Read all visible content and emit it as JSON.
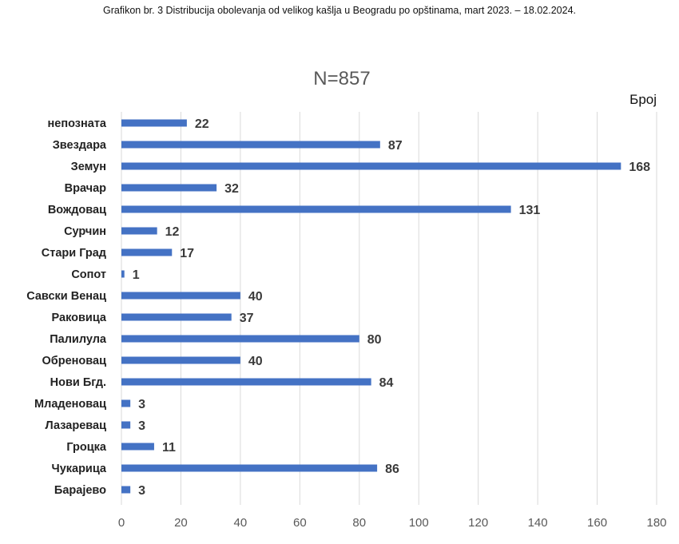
{
  "caption": "Grafikon br. 3 Distribucija obolevanja od velikog kašlja u Beogradu po opštinama, mart 2023. – 18.02.2024.",
  "chart_data": {
    "type": "bar",
    "orientation": "horizontal",
    "title": "N=857",
    "xlabel": "Број",
    "ylabel": "",
    "categories": [
      "непозната",
      "Звездара",
      "Земун",
      "Врачар",
      "Вождовац",
      "Сурчин",
      "Стари Град",
      "Сопот",
      "Савски  Венац",
      "Раковица",
      "Палилула",
      "Обреновац",
      "Нови Бгд.",
      "Младеновац",
      "Лазаревац",
      "Гроцка",
      "Чукарица",
      "Барајево"
    ],
    "values": [
      22,
      87,
      168,
      32,
      131,
      12,
      17,
      1,
      40,
      37,
      80,
      40,
      84,
      3,
      3,
      11,
      86,
      3
    ],
    "xlim": [
      0,
      180
    ],
    "xticks": [
      0,
      20,
      40,
      60,
      80,
      100,
      120,
      140,
      160,
      180
    ],
    "grid": true,
    "legend": "none",
    "bar_color": "#4472C4"
  }
}
